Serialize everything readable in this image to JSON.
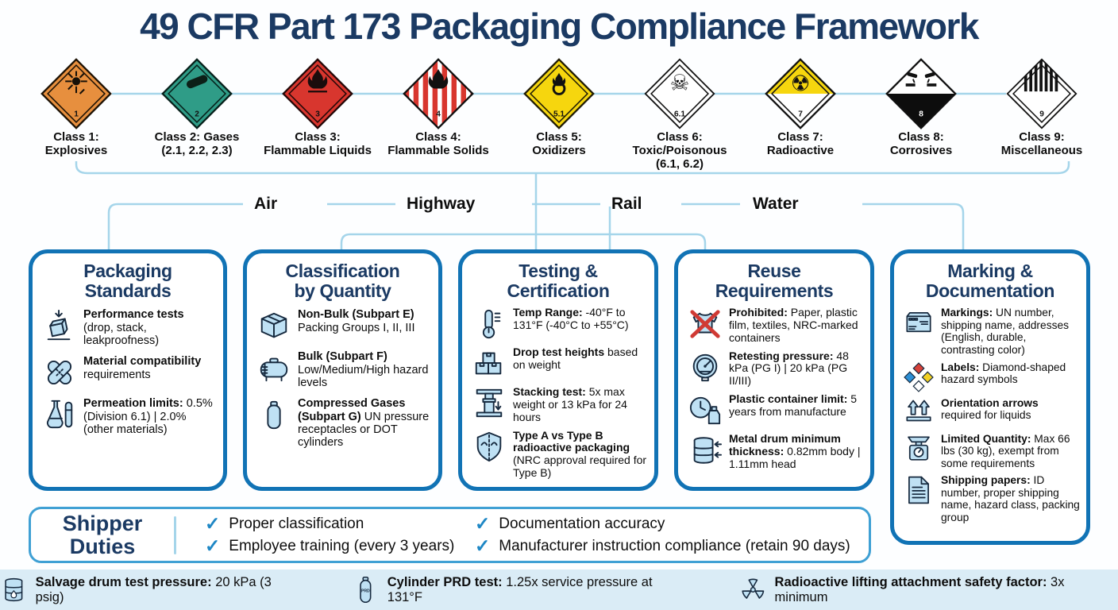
{
  "title": "49 CFR Part 173 Packaging Compliance Framework",
  "colors": {
    "navy": "#1b3a63",
    "box-border": "#1173b5",
    "connector": "#a5d5ea",
    "icon-fill": "#bfe1f4",
    "icon-stroke": "#16293e",
    "footer-bg": "#daecf6",
    "check": "#1e87c5"
  },
  "hazard_classes": [
    {
      "placard": "explosives",
      "number": "1",
      "lines": [
        "Class 1:",
        "Explosives"
      ]
    },
    {
      "placard": "gases",
      "number": "2",
      "lines": [
        "Class 2: Gases",
        "(2.1, 2.2, 2.3)"
      ]
    },
    {
      "placard": "flammable-liquids",
      "number": "3",
      "lines": [
        "Class 3:",
        "Flammable Liquids"
      ]
    },
    {
      "placard": "flammable-solids",
      "number": "4",
      "lines": [
        "Class 4:",
        "Flammable Solids"
      ]
    },
    {
      "placard": "oxidizers",
      "number": "5.1",
      "lines": [
        "Class 5:",
        "Oxidizers"
      ]
    },
    {
      "placard": "toxic",
      "number": "6.1",
      "lines": [
        "Class 6:",
        "Toxic/Poisonous",
        "(6.1, 6.2)"
      ]
    },
    {
      "placard": "radioactive",
      "number": "7",
      "lines": [
        "Class 7:",
        "Radioactive"
      ]
    },
    {
      "placard": "corrosives",
      "number": "8",
      "lines": [
        "Class 8:",
        "Corrosives"
      ]
    },
    {
      "placard": "miscellaneous",
      "number": "9",
      "lines": [
        "Class 9:",
        "Miscellaneous"
      ]
    }
  ],
  "transport_modes": [
    {
      "label": "Air",
      "icon": "airplane-icon"
    },
    {
      "label": "Highway",
      "icon": "truck-icon"
    },
    {
      "label": "Rail",
      "icon": "train-icon"
    },
    {
      "label": "Water",
      "icon": "ship-icon"
    }
  ],
  "boxes": [
    {
      "key": "packaging-standards",
      "title_lines": [
        "Packaging",
        "Standards"
      ],
      "items": [
        {
          "icon": "drop-test-icon",
          "bold": "Performance tests",
          "rest": "(drop, stack, leakproofness)"
        },
        {
          "icon": "compatibility-icon",
          "bold": "Material compatibility",
          "rest": "requirements"
        },
        {
          "icon": "permeation-icon",
          "bold": "Permeation limits:",
          "rest": "0.5% (Division 6.1) | 2.0% (other materials)"
        }
      ]
    },
    {
      "key": "classification-by-quantity",
      "title_lines": [
        "Classification",
        "by Quantity"
      ],
      "items": [
        {
          "icon": "carton-icon",
          "bold": "Non-Bulk (Subpart E)",
          "rest": "Packing Groups I, II, III"
        },
        {
          "icon": "bulk-tank-icon",
          "bold": "Bulk (Subpart F)",
          "rest": "Low/Medium/High hazard levels"
        },
        {
          "icon": "gas-cylinder-icon",
          "bold": "Compressed Gases (Subpart G)",
          "rest": "UN pressure receptacles or DOT cylinders"
        }
      ]
    },
    {
      "key": "testing-certification",
      "title_lines": [
        "Testing &",
        "Certification"
      ],
      "items": [
        {
          "icon": "thermometer-icon",
          "bold": "Temp Range:",
          "rest": "-40°F to 131°F (-40°C to +55°C)"
        },
        {
          "icon": "drop-heights-icon",
          "bold": "Drop test heights",
          "rest": "based on weight"
        },
        {
          "icon": "stacking-icon",
          "bold": "Stacking test:",
          "rest": "5x max weight or 13 kPa for 24 hours"
        },
        {
          "icon": "shield-icon",
          "bold": "Type A vs Type B radioactive packaging",
          "rest": "(NRC approval required for Type B)"
        }
      ]
    },
    {
      "key": "reuse-requirements",
      "title_lines": [
        "Reuse",
        "Requirements"
      ],
      "items": [
        {
          "icon": "prohibited-icon",
          "bold": "Prohibited:",
          "rest": "Paper, plastic film, textiles, NRC-marked containers"
        },
        {
          "icon": "gauge-icon",
          "bold": "Retesting pressure:",
          "rest": "48 kPa (PG I) | 20 kPa (PG II/III)"
        },
        {
          "icon": "container-age-icon",
          "bold": "Plastic container limit:",
          "rest": "5 years from manufacture"
        },
        {
          "icon": "drum-icon",
          "bold": "Metal drum minimum thickness:",
          "rest": "0.82mm body | 1.11mm head"
        }
      ]
    },
    {
      "key": "marking-documentation",
      "title_lines": [
        "Marking &",
        "Documentation"
      ],
      "items": [
        {
          "icon": "marking-package-icon",
          "bold": "Markings:",
          "rest": "UN number, shipping name, addresses (English, durable, contrasting color)"
        },
        {
          "icon": "nfpa-diamond-icon",
          "bold": "Labels:",
          "rest": "Diamond-shaped hazard symbols"
        },
        {
          "icon": "orientation-arrows-icon",
          "bold": "Orientation arrows",
          "rest": "required for liquids"
        },
        {
          "icon": "scale-icon",
          "bold": "Limited Quantity:",
          "rest": "Max 66 lbs (30 kg), exempt from some requirements"
        },
        {
          "icon": "shipping-papers-icon",
          "bold": "Shipping papers:",
          "rest": "ID number, proper shipping name, hazard class, packing group"
        }
      ]
    }
  ],
  "shipper_duties": {
    "title_lines": [
      "Shipper",
      "Duties"
    ],
    "checks": [
      "Proper classification",
      "Employee training (every 3 years)",
      "Documentation accuracy",
      "Manufacturer instruction compliance (retain 90 days)"
    ]
  },
  "footer_facts": [
    {
      "icon": "salvage-drum-icon",
      "bold": "Salvage drum test pressure:",
      "rest": "20 kPa (3 psig)"
    },
    {
      "icon": "prd-cylinder-icon",
      "bold": "Cylinder PRD test:",
      "rest": "1.25x service pressure at 131°F"
    },
    {
      "icon": "radiation-icon",
      "bold": "Radioactive lifting attachment safety factor:",
      "rest": "3x minimum"
    }
  ]
}
